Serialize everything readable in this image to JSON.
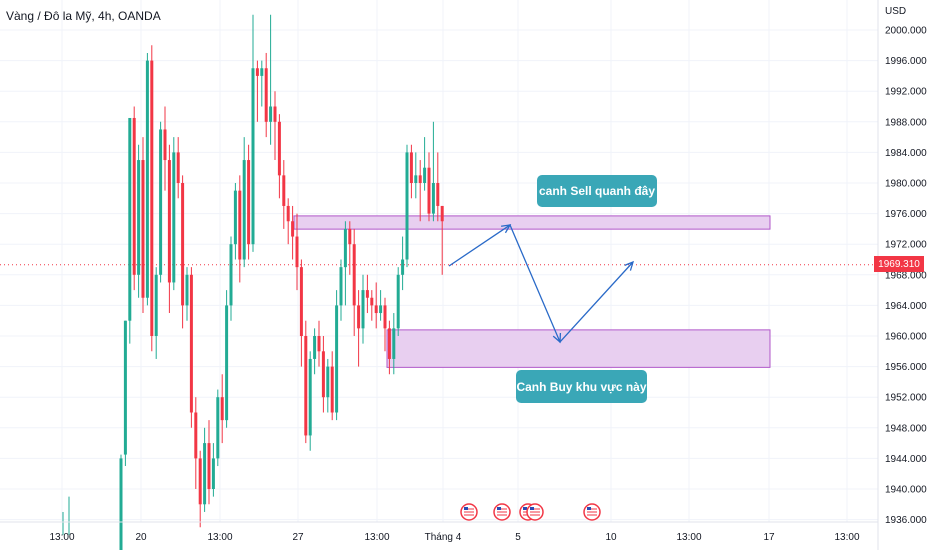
{
  "header": {
    "title": "Vàng / Đô la Mỹ, 4h, OANDA"
  },
  "colors": {
    "up": "#22ab94",
    "down": "#f23645",
    "zone_fill": "#e8cff0",
    "zone_stroke": "#b057c9",
    "arrow": "#2a6ac8",
    "annotation": "#3aa7b7",
    "current_price_line": "#f23645"
  },
  "chart_data": {
    "type": "candlestick",
    "title": "Vàng / Đô la Mỹ, 4h, OANDA",
    "y_unit": "USD",
    "ylim": [
      1935,
      2003
    ],
    "y_ticks": [
      "2000.000",
      "1996.000",
      "1992.000",
      "1988.000",
      "1984.000",
      "1980.000",
      "1976.000",
      "1972.000",
      "1968.000",
      "1964.000",
      "1960.000",
      "1956.000",
      "1952.000",
      "1948.000",
      "1944.000",
      "1940.000",
      "1936.000"
    ],
    "x_ticks": [
      "13:00",
      "20",
      "13:00",
      "27",
      "13:00",
      "Tháng 4",
      "5",
      "10",
      "13:00",
      "17",
      "13:00"
    ],
    "current_price": "1969.310",
    "candles": [
      [
        1930,
        1944,
        1929,
        1944.5
      ],
      [
        1944.5,
        1962,
        1943,
        1962
      ],
      [
        1962,
        1988.5,
        1959,
        1988.5
      ],
      [
        1988.5,
        1968,
        1966,
        1990
      ],
      [
        1968,
        1983,
        1965,
        1985
      ],
      [
        1983,
        1965,
        1963,
        1986
      ],
      [
        1965,
        1996,
        1964,
        1997
      ],
      [
        1996,
        1960,
        1958,
        1998
      ],
      [
        1960,
        1968,
        1957,
        1969
      ],
      [
        1968,
        1987,
        1967,
        1988
      ],
      [
        1987,
        1983,
        1979,
        1990
      ],
      [
        1983,
        1967,
        1963,
        1985
      ],
      [
        1967,
        1984,
        1966,
        1986
      ],
      [
        1984,
        1980,
        1978,
        1986
      ],
      [
        1980,
        1964,
        1961,
        1981
      ],
      [
        1964,
        1968,
        1962,
        1969
      ],
      [
        1968,
        1950,
        1948,
        1969
      ],
      [
        1950,
        1944,
        1940,
        1952
      ],
      [
        1944,
        1938,
        1935,
        1945
      ],
      [
        1938,
        1946,
        1937,
        1948
      ],
      [
        1946,
        1940,
        1938,
        1949
      ],
      [
        1940,
        1944,
        1939,
        1946
      ],
      [
        1944,
        1952,
        1943,
        1953
      ],
      [
        1952,
        1949,
        1946,
        1955
      ],
      [
        1949,
        1964,
        1948,
        1966
      ],
      [
        1964,
        1972,
        1962,
        1973
      ],
      [
        1972,
        1979,
        1970,
        1980
      ],
      [
        1979,
        1970,
        1967,
        1981
      ],
      [
        1970,
        1983,
        1969,
        1986
      ],
      [
        1983,
        1972,
        1970,
        1985
      ],
      [
        1972,
        1995,
        1971,
        2002
      ],
      [
        1995,
        1994,
        1988,
        1996
      ],
      [
        1994,
        1995,
        1990,
        1996
      ],
      [
        1995,
        1988,
        1986,
        1997
      ],
      [
        1988,
        1990,
        1985,
        2002
      ],
      [
        1990,
        1988,
        1983,
        1992
      ],
      [
        1988,
        1981,
        1978,
        1989
      ],
      [
        1981,
        1977,
        1974,
        1983
      ],
      [
        1977,
        1975,
        1972,
        1978
      ],
      [
        1975,
        1973,
        1970,
        1977
      ],
      [
        1973,
        1969,
        1966,
        1976
      ],
      [
        1969,
        1960,
        1956,
        1970
      ],
      [
        1960,
        1947,
        1946,
        1962
      ],
      [
        1947,
        1957,
        1945,
        1958
      ],
      [
        1957,
        1960,
        1955,
        1961
      ],
      [
        1960,
        1958,
        1956,
        1962
      ],
      [
        1958,
        1952,
        1950,
        1960
      ],
      [
        1952,
        1956,
        1950,
        1957
      ],
      [
        1956,
        1950,
        1949,
        1958
      ],
      [
        1950,
        1964,
        1949,
        1966
      ],
      [
        1964,
        1969,
        1962,
        1970
      ],
      [
        1969,
        1974,
        1964,
        1975
      ],
      [
        1974,
        1972,
        1968,
        1975
      ],
      [
        1972,
        1964,
        1960,
        1974
      ],
      [
        1964,
        1961,
        1956,
        1966
      ],
      [
        1961,
        1966,
        1959,
        1968
      ],
      [
        1966,
        1965,
        1963,
        1968
      ],
      [
        1965,
        1964,
        1962,
        1966
      ],
      [
        1964,
        1963,
        1961,
        1967
      ],
      [
        1963,
        1964,
        1962,
        1966
      ],
      [
        1964,
        1961,
        1958,
        1965
      ],
      [
        1961,
        1957,
        1955,
        1962
      ],
      [
        1957,
        1961,
        1955,
        1963
      ],
      [
        1961,
        1968,
        1960,
        1969
      ],
      [
        1968,
        1970,
        1966,
        1973
      ],
      [
        1970,
        1984,
        1969,
        1985
      ],
      [
        1984,
        1980,
        1978,
        1985
      ],
      [
        1980,
        1981,
        1978,
        1984
      ],
      [
        1981,
        1980,
        1975,
        1983
      ],
      [
        1980,
        1982,
        1979,
        1986
      ],
      [
        1982,
        1976,
        1975,
        1984
      ],
      [
        1976,
        1980,
        1975,
        1988
      ],
      [
        1980,
        1977,
        1975,
        1984
      ],
      [
        1977,
        1975,
        1968,
        1977
      ]
    ]
  },
  "annotations": {
    "sell": "canh Sell quanh đây",
    "buy": "Canh Buy khu vực này"
  }
}
